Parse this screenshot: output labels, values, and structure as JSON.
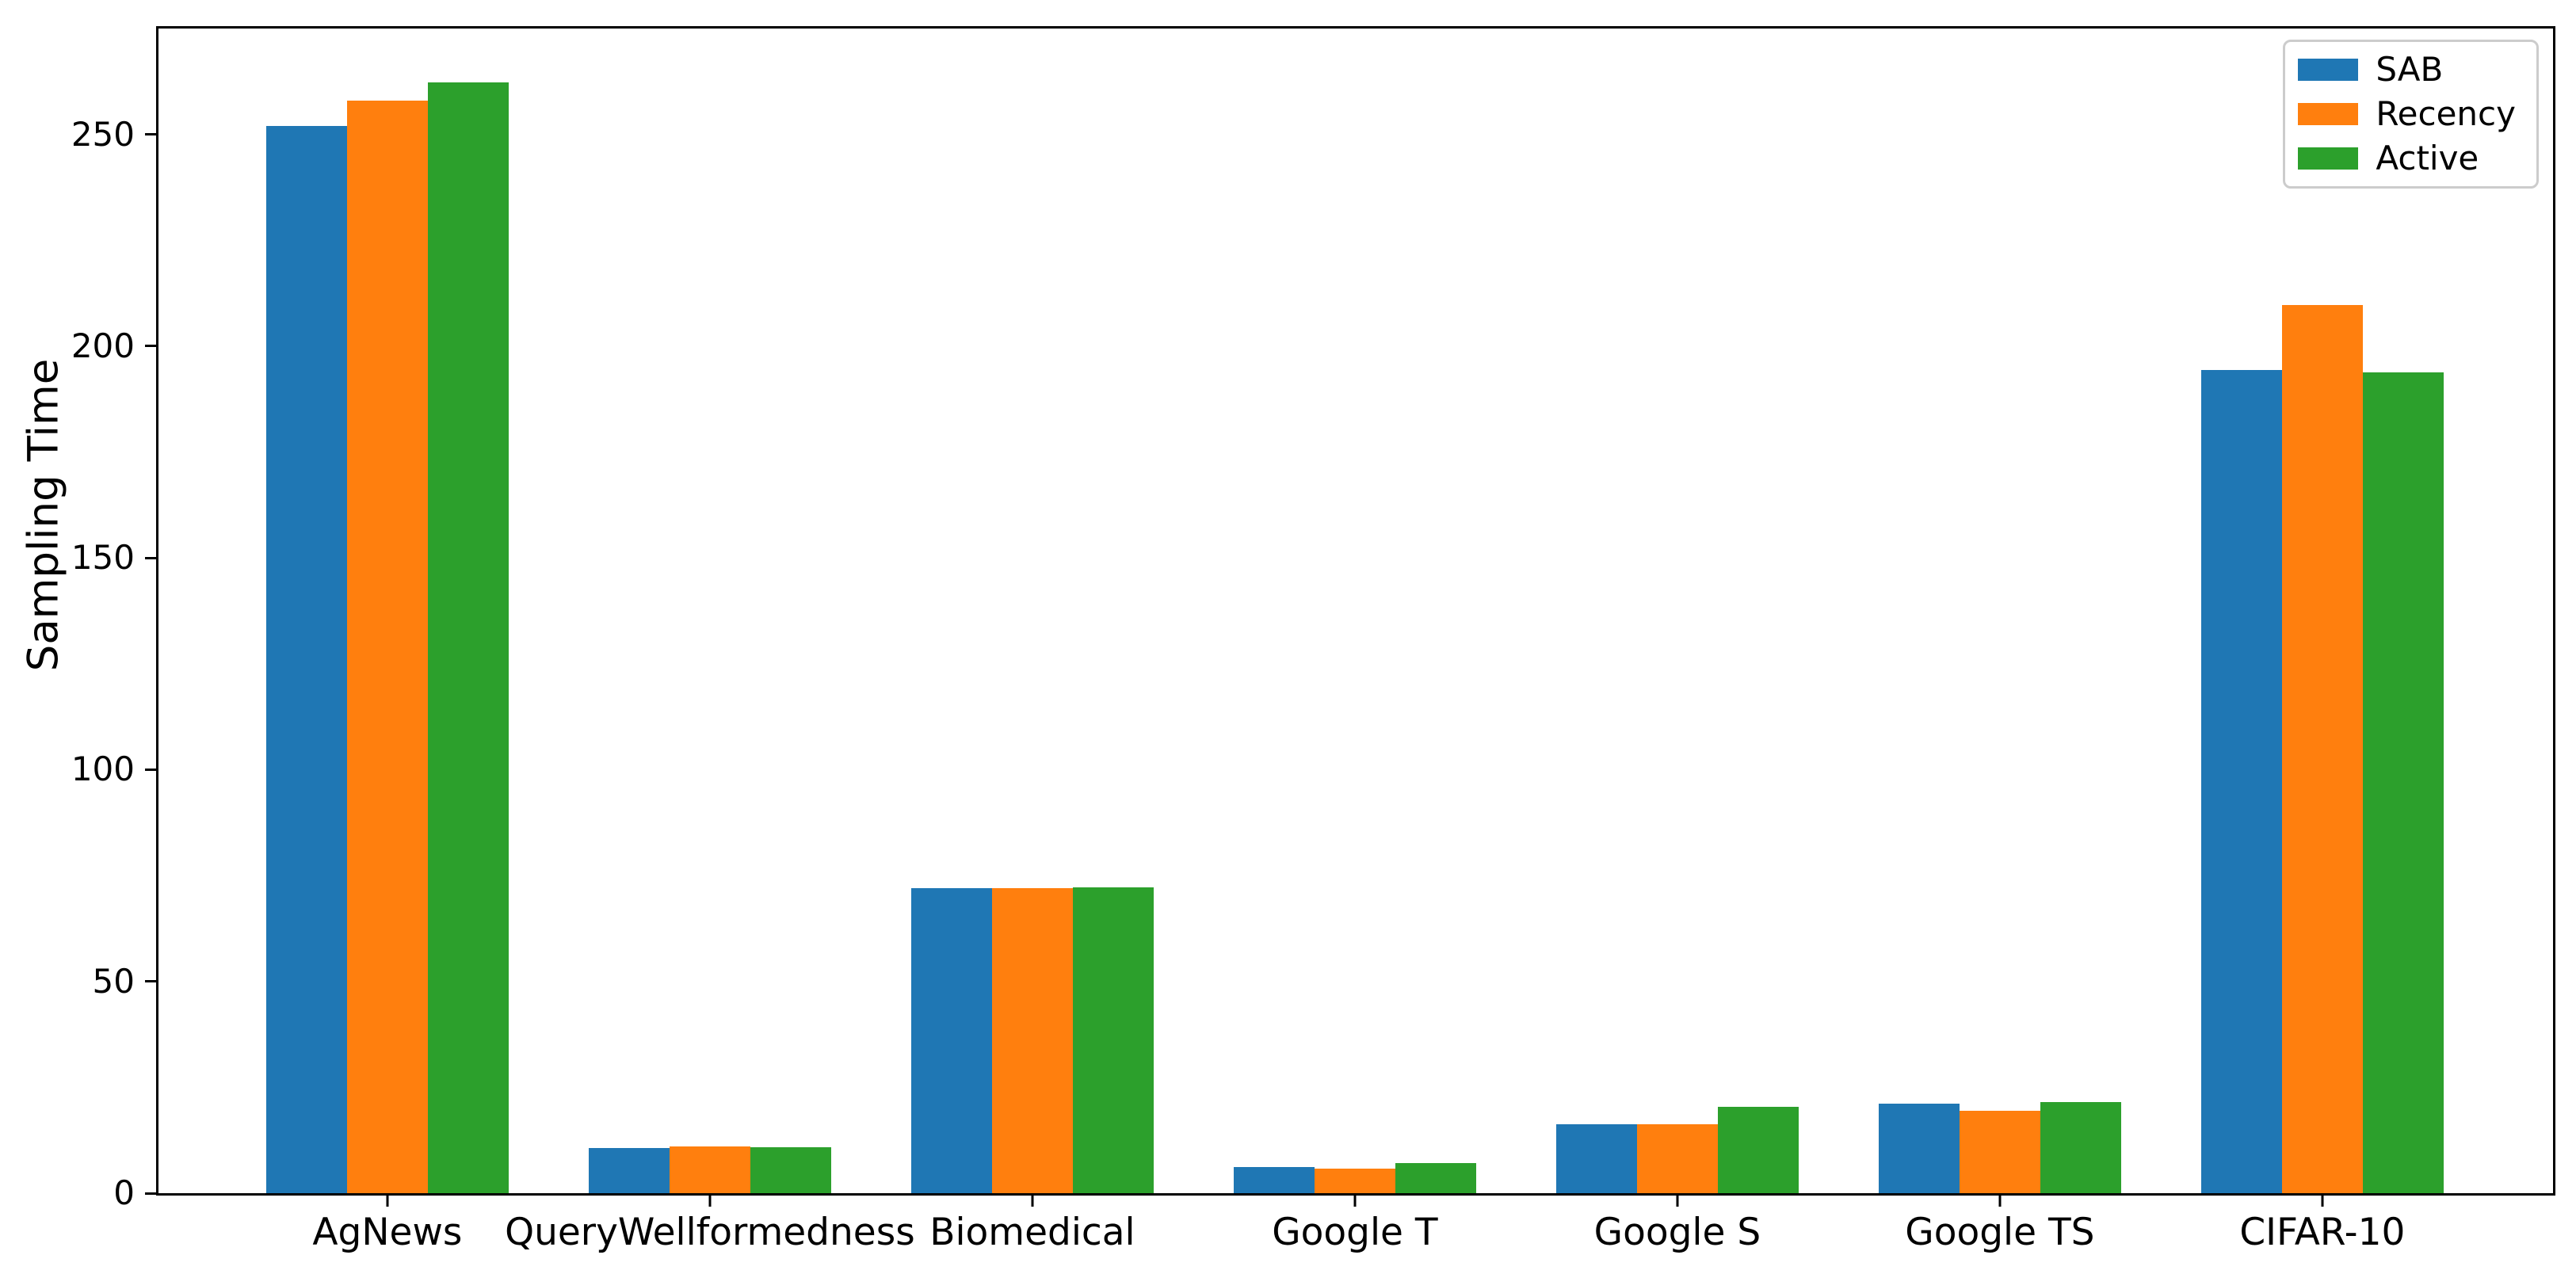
{
  "chart_data": {
    "type": "bar",
    "title": "",
    "xlabel": "",
    "ylabel": "Sampling Time",
    "categories": [
      "AgNews",
      "QueryWellformedness",
      "Biomedical",
      "Google T",
      "Google S",
      "Google TS",
      "CIFAR-10"
    ],
    "series": [
      {
        "name": "SAB",
        "color": "#1f77b4",
        "values": [
          252.0,
          10.7,
          72.0,
          6.2,
          16.2,
          21.2,
          194.3
        ]
      },
      {
        "name": "Recency",
        "color": "#ff7f0e",
        "values": [
          258.0,
          11.0,
          72.0,
          5.8,
          16.2,
          19.5,
          209.7
        ]
      },
      {
        "name": "Active",
        "color": "#2ca02c",
        "values": [
          262.3,
          10.9,
          72.2,
          7.1,
          20.4,
          21.6,
          193.8
        ]
      }
    ],
    "ylim": [
      0,
      275
    ],
    "y_ticks": [
      0,
      50,
      100,
      150,
      200,
      250
    ],
    "grid": false,
    "legend_position": "upper right",
    "axis_color": "#000000",
    "legend_border_color": "#cccccc"
  }
}
